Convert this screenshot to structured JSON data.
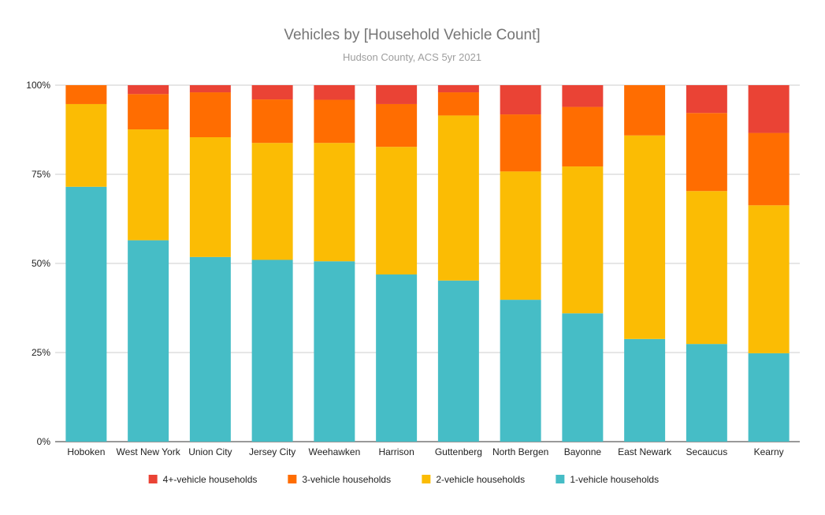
{
  "chart_data": {
    "type": "bar",
    "stacked": "percent",
    "title": "Vehicles by [Household Vehicle Count]",
    "subtitle": "Hudson County, ACS 5yr 2021",
    "xlabel": "",
    "ylabel": "",
    "ylim": [
      0,
      100
    ],
    "yticks": [
      "0%",
      "25%",
      "50%",
      "75%",
      "100%"
    ],
    "grid": true,
    "legend_position": "bottom",
    "categories": [
      "Hoboken",
      "West New York",
      "Union City",
      "Jersey City",
      "Weehawken",
      "Harrison",
      "Guttenberg",
      "North Bergen",
      "Bayonne",
      "East Newark",
      "Secaucus",
      "Kearny"
    ],
    "series": [
      {
        "name": "1-vehicle households",
        "color": "#46bdc6",
        "values": [
          71.5,
          56.5,
          51.8,
          51.0,
          50.6,
          46.9,
          45.2,
          39.8,
          36.0,
          28.8,
          27.4,
          24.8
        ]
      },
      {
        "name": "2-vehicle households",
        "color": "#fbbc04",
        "values": [
          23.2,
          31.1,
          33.6,
          32.8,
          33.2,
          35.8,
          46.3,
          36.0,
          41.2,
          57.1,
          42.9,
          41.5
        ]
      },
      {
        "name": "3-vehicle households",
        "color": "#ff6d01",
        "values": [
          5.3,
          9.9,
          12.6,
          12.2,
          12.1,
          12.0,
          6.5,
          16.0,
          16.7,
          14.1,
          21.9,
          20.3
        ]
      },
      {
        "name": "4+-vehicle households",
        "color": "#ea4335",
        "values": [
          0.0,
          2.5,
          2.0,
          4.0,
          4.1,
          5.3,
          2.0,
          8.2,
          6.1,
          0.0,
          7.8,
          13.4
        ]
      }
    ],
    "legend_order": [
      "4+-vehicle households",
      "3-vehicle households",
      "2-vehicle households",
      "1-vehicle households"
    ]
  }
}
